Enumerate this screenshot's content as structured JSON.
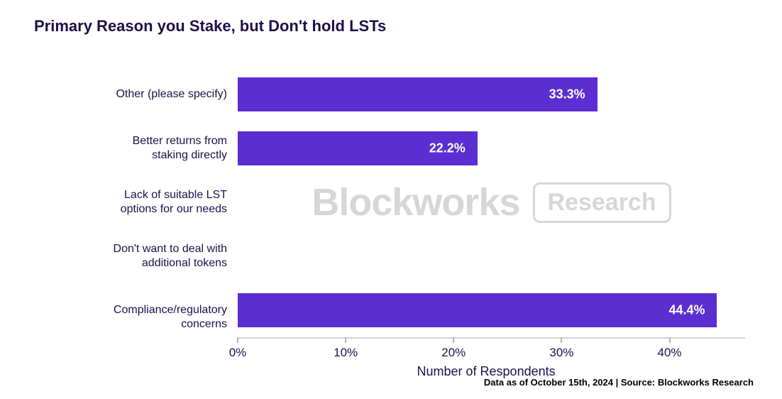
{
  "title": "Primary Reason you Stake, but Don't hold LSTs",
  "watermark": {
    "main": "Blockworks",
    "tag": "Research"
  },
  "footer": "Data as of October 15th, 2024 | Source: Blockworks Research",
  "chart": {
    "type": "bar-horizontal",
    "xlabel": "Number of Respondents",
    "xlim_max_pct": 47,
    "xticks": [
      {
        "pct": 0,
        "label": "0%"
      },
      {
        "pct": 10,
        "label": "10%"
      },
      {
        "pct": 20,
        "label": "20%"
      },
      {
        "pct": 30,
        "label": "30%"
      },
      {
        "pct": 40,
        "label": "40%"
      }
    ],
    "bar_color": "#5b2ed1",
    "value_label_color": "#ffffff",
    "title_fontsize": 22,
    "label_fontsize": 16,
    "value_fontsize": 18,
    "background_color": "#ffffff",
    "categories": [
      {
        "label_lines": [
          "Other (please specify)"
        ],
        "value_pct": 33.3,
        "value_label": "33.3%"
      },
      {
        "label_lines": [
          "Better returns from",
          "staking directly"
        ],
        "value_pct": 22.2,
        "value_label": "22.2%"
      },
      {
        "label_lines": [
          "Lack of suitable LST",
          "options for our needs"
        ],
        "value_pct": 0,
        "value_label": ""
      },
      {
        "label_lines": [
          "Don't want to deal with",
          "additional tokens"
        ],
        "value_pct": 0,
        "value_label": ""
      },
      {
        "label_lines": [
          "Compliance/regulatory concerns"
        ],
        "value_pct": 44.4,
        "value_label": "44.4%"
      }
    ]
  }
}
